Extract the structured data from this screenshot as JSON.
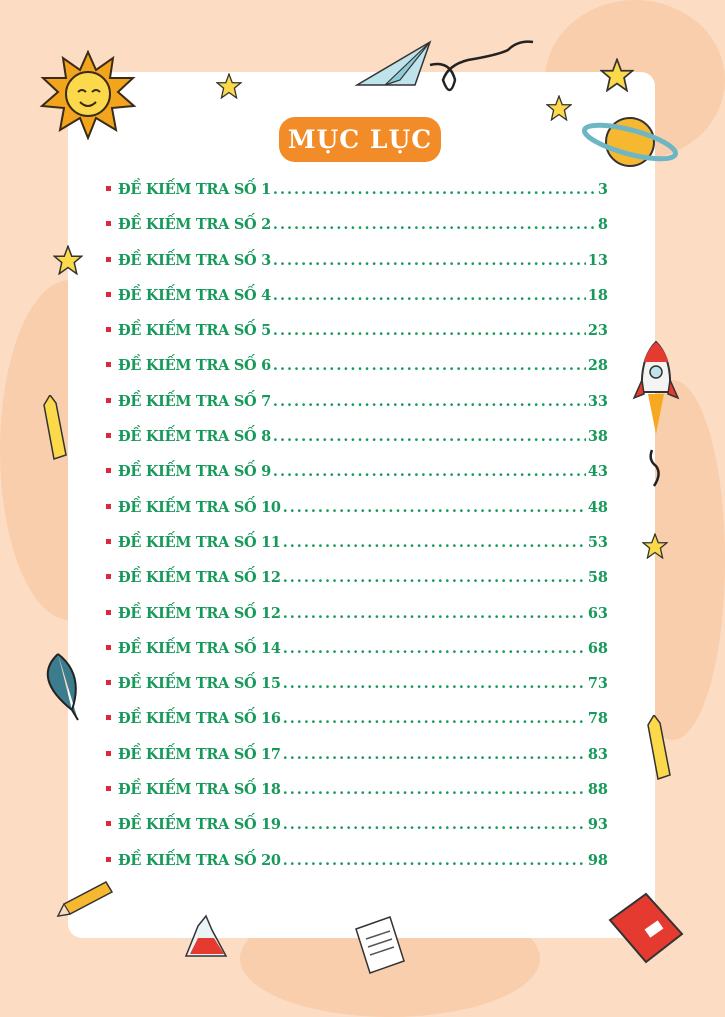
{
  "title": "MỤC LỤC",
  "entries": [
    {
      "label": "ĐỀ KIẾM TRA SỐ 1",
      "page": "3"
    },
    {
      "label": "ĐỀ KIẾM TRA SỐ 2",
      "page": "8"
    },
    {
      "label": "ĐỀ KIẾM TRA SỐ 3",
      "page": "13"
    },
    {
      "label": "ĐỀ KIẾM TRA SỐ 4",
      "page": "18"
    },
    {
      "label": "ĐỀ KIẾM TRA SỐ 5",
      "page": "23"
    },
    {
      "label": "ĐỀ KIẾM TRA SỐ 6",
      "page": "28"
    },
    {
      "label": "ĐỀ KIẾM TRA SỐ 7",
      "page": "33"
    },
    {
      "label": "ĐỀ KIẾM TRA SỐ 8",
      "page": "38"
    },
    {
      "label": "ĐỀ KIẾM TRA SỐ 9",
      "page": "43"
    },
    {
      "label": "ĐỀ KIẾM TRA SỐ 10",
      "page": "48"
    },
    {
      "label": "ĐỀ KIẾM TRA SỐ 11",
      "page": "53"
    },
    {
      "label": "ĐỀ KIẾM TRA SỐ 12",
      "page": "58"
    },
    {
      "label": "ĐỀ KIẾM TRA SỐ 12",
      "page": "63"
    },
    {
      "label": "ĐỀ KIẾM TRA SỐ 14",
      "page": "68"
    },
    {
      "label": "ĐỀ KIẾM TRA SỐ 15",
      "page": "73"
    },
    {
      "label": "ĐỀ KIẾM TRA SỐ 16",
      "page": "78"
    },
    {
      "label": "ĐỀ KIẾM TRA SỐ 17",
      "page": "83"
    },
    {
      "label": "ĐỀ KIẾM TRA SỐ 18",
      "page": "88"
    },
    {
      "label": "ĐỀ KIẾM TRA SỐ 19",
      "page": "93"
    },
    {
      "label": "ĐỀ KIẾM TRA SỐ 20",
      "page": "98"
    }
  ],
  "colors": {
    "background": "#fcdcc2",
    "title_bg": "#f28c28",
    "entry_text": "#16995a",
    "bullet": "#e0263a"
  },
  "decorations": [
    "sun-icon",
    "star-icon",
    "paper-plane-icon",
    "planet-icon",
    "rocket-icon",
    "crayon-icon",
    "leaf-icon",
    "pencil-icon",
    "flask-icon",
    "notepad-icon",
    "book-icon"
  ]
}
